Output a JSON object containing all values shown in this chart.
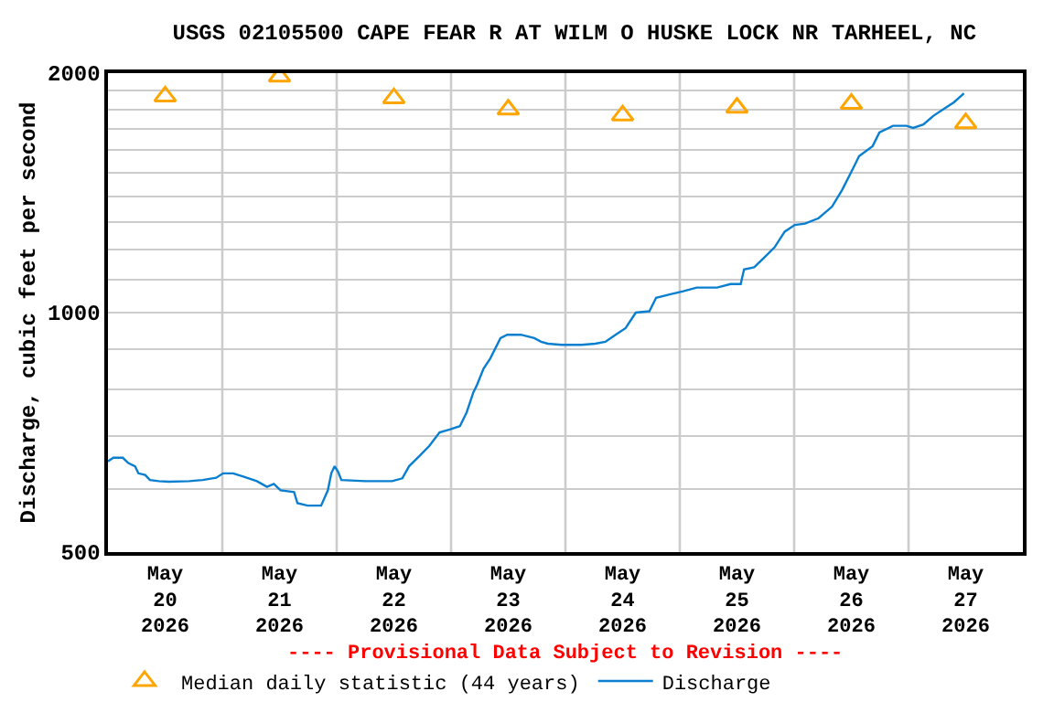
{
  "chart_data": {
    "type": "line",
    "title": "USGS 02105500 CAPE FEAR R AT WILM O HUSKE LOCK NR TARHEEL, NC",
    "ylabel": "Discharge, cubic feet per second",
    "annotations": [
      "---- Provisional Data Subject to Revision ----"
    ],
    "log": "y",
    "grid": true,
    "legend": "bottom",
    "xlim": [
      "2026-05-20T00:00",
      "2026-05-28T00:00"
    ],
    "xticks": [
      {
        "value": "2026-05-20T12:00",
        "label": "May\n20\n2026"
      },
      {
        "value": "2026-05-21T12:00",
        "label": "May\n21\n2026"
      },
      {
        "value": "2026-05-22T12:00",
        "label": "May\n22\n2026"
      },
      {
        "value": "2026-05-23T12:00",
        "label": "May\n23\n2026"
      },
      {
        "value": "2026-05-24T12:00",
        "label": "May\n24\n2026"
      },
      {
        "value": "2026-05-25T12:00",
        "label": "May\n25\n2026"
      },
      {
        "value": "2026-05-26T12:00",
        "label": "May\n26\n2026"
      },
      {
        "value": "2026-05-27T12:00",
        "label": "May\n27\n2026"
      },
      {
        "value": "2026-05-21T00:00",
        "label": null
      },
      {
        "value": "2026-05-22T00:00",
        "label": null
      },
      {
        "value": "2026-05-23T00:00",
        "label": null
      },
      {
        "value": "2026-05-24T00:00",
        "label": null
      },
      {
        "value": "2026-05-25T00:00",
        "label": null
      },
      {
        "value": "2026-05-26T00:00",
        "label": null
      },
      {
        "value": "2026-05-27T00:00",
        "label": null
      }
    ],
    "ylim": [
      500,
      2000
    ],
    "yticks": [
      500,
      {
        "value": 600,
        "label": null
      },
      {
        "value": 700,
        "label": null
      },
      {
        "value": 800,
        "label": null
      },
      {
        "value": 900,
        "label": null
      },
      1000,
      {
        "value": 1100,
        "label": null
      },
      {
        "value": 1200,
        "label": null
      },
      {
        "value": 1300,
        "label": null
      },
      {
        "value": 1400,
        "label": null
      },
      {
        "value": 1500,
        "label": null
      },
      {
        "value": 1600,
        "label": null
      },
      {
        "value": 1700,
        "label": null
      },
      {
        "value": 1800,
        "label": null
      },
      {
        "value": 1900,
        "label": null
      },
      2000
    ],
    "series": [
      {
        "name": "Median daily statistic (44 years)",
        "type": "scatter",
        "marker": "triangle",
        "color": "#ffa500",
        "x": [
          "2026-05-20T12:00",
          "2026-05-21T12:00",
          "2026-05-22T12:00",
          "2026-05-23T12:00",
          "2026-05-24T12:00",
          "2026-05-25T12:00",
          "2026-05-26T12:00",
          "2026-05-27T12:00"
        ],
        "values": [
          1870,
          1980,
          1860,
          1800,
          1770,
          1810,
          1830,
          1730
        ]
      },
      {
        "name": "Discharge",
        "marker": "none",
        "line_style": "solid",
        "color": "#0a7fd0",
        "x": [
          "2026-05-20T00:00",
          "2026-05-20T01:08",
          "2026-05-20T03:07",
          "2026-05-20T04:16",
          "2026-05-20T05:41",
          "2026-05-20T06:23",
          "2026-05-20T07:49",
          "2026-05-20T08:48",
          "2026-05-20T10:39",
          "2026-05-20T12:47",
          "2026-05-20T17:02",
          "2026-05-20T19:53",
          "2026-05-20T22:43",
          "2026-05-21T00:09",
          "2026-05-21T02:16",
          "2026-05-21T04:24",
          "2026-05-21T07:15",
          "2026-05-21T09:22",
          "2026-05-21T10:48",
          "2026-05-21T12:13",
          "2026-05-21T15:03",
          "2026-05-21T15:46",
          "2026-05-21T17:54",
          "2026-05-21T20:44",
          "2026-05-21T22:09",
          "2026-05-21T22:52",
          "2026-05-21T23:34",
          "2026-05-22T00:17",
          "2026-05-22T00:59",
          "2026-05-22T05:58",
          "2026-05-22T11:38",
          "2026-05-22T13:46",
          "2026-05-22T15:11",
          "2026-05-22T17:19",
          "2026-05-22T19:27",
          "2026-05-22T21:35",
          "2026-05-22T23:43",
          "2026-05-23T01:51",
          "2026-05-23T03:16",
          "2026-05-23T04:41",
          "2026-05-23T05:24",
          "2026-05-23T06:49",
          "2026-05-23T08:14",
          "2026-05-23T10:22",
          "2026-05-23T11:47",
          "2026-05-23T14:38",
          "2026-05-23T17:28",
          "2026-05-23T18:53",
          "2026-05-23T20:19",
          "2026-05-23T23:09",
          "2026-05-24T03:25",
          "2026-05-24T06:15",
          "2026-05-24T08:23",
          "2026-05-24T10:31",
          "2026-05-24T12:38",
          "2026-05-24T14:46",
          "2026-05-24T17:37",
          "2026-05-24T19:02",
          "2026-05-24T21:52",
          "2026-05-25T00:43",
          "2026-05-25T03:33",
          "2026-05-25T07:49",
          "2026-05-25T10:39",
          "2026-05-25T12:47",
          "2026-05-25T13:29",
          "2026-05-25T15:37",
          "2026-05-25T17:45",
          "2026-05-25T19:53",
          "2026-05-25T22:01",
          "2026-05-26T00:08",
          "2026-05-26T02:16",
          "2026-05-26T05:07",
          "2026-05-26T07:57",
          "2026-05-26T10:05",
          "2026-05-26T12:13",
          "2026-05-26T13:38",
          "2026-05-26T16:28",
          "2026-05-26T17:53",
          "2026-05-26T20:44",
          "2026-05-26T23:34",
          "2026-05-27T00:59",
          "2026-05-27T03:07",
          "2026-05-27T05:15",
          "2026-05-27T07:23",
          "2026-05-27T09:31",
          "2026-05-27T11:38"
        ],
        "values": [
          650,
          657,
          657,
          647,
          641,
          628,
          625,
          616,
          614,
          613,
          614,
          616,
          620,
          628,
          628,
          622,
          614,
          604,
          609,
          598,
          595,
          576,
          572,
          572,
          598,
          628,
          641,
          631,
          616,
          614,
          614,
          619,
          641,
          660,
          680,
          707,
          713,
          720,
          749,
          794,
          810,
          850,
          876,
          929,
          938,
          938,
          929,
          919,
          914,
          911,
          911,
          914,
          919,
          938,
          956,
          1000,
          1004,
          1044,
          1054,
          1064,
          1075,
          1075,
          1086,
          1086,
          1133,
          1140,
          1173,
          1208,
          1264,
          1289,
          1294,
          1314,
          1359,
          1427,
          1512,
          1573,
          1619,
          1684,
          1717,
          1717,
          1707,
          1724,
          1768,
          1803,
          1838,
          1886
        ]
      }
    ]
  }
}
